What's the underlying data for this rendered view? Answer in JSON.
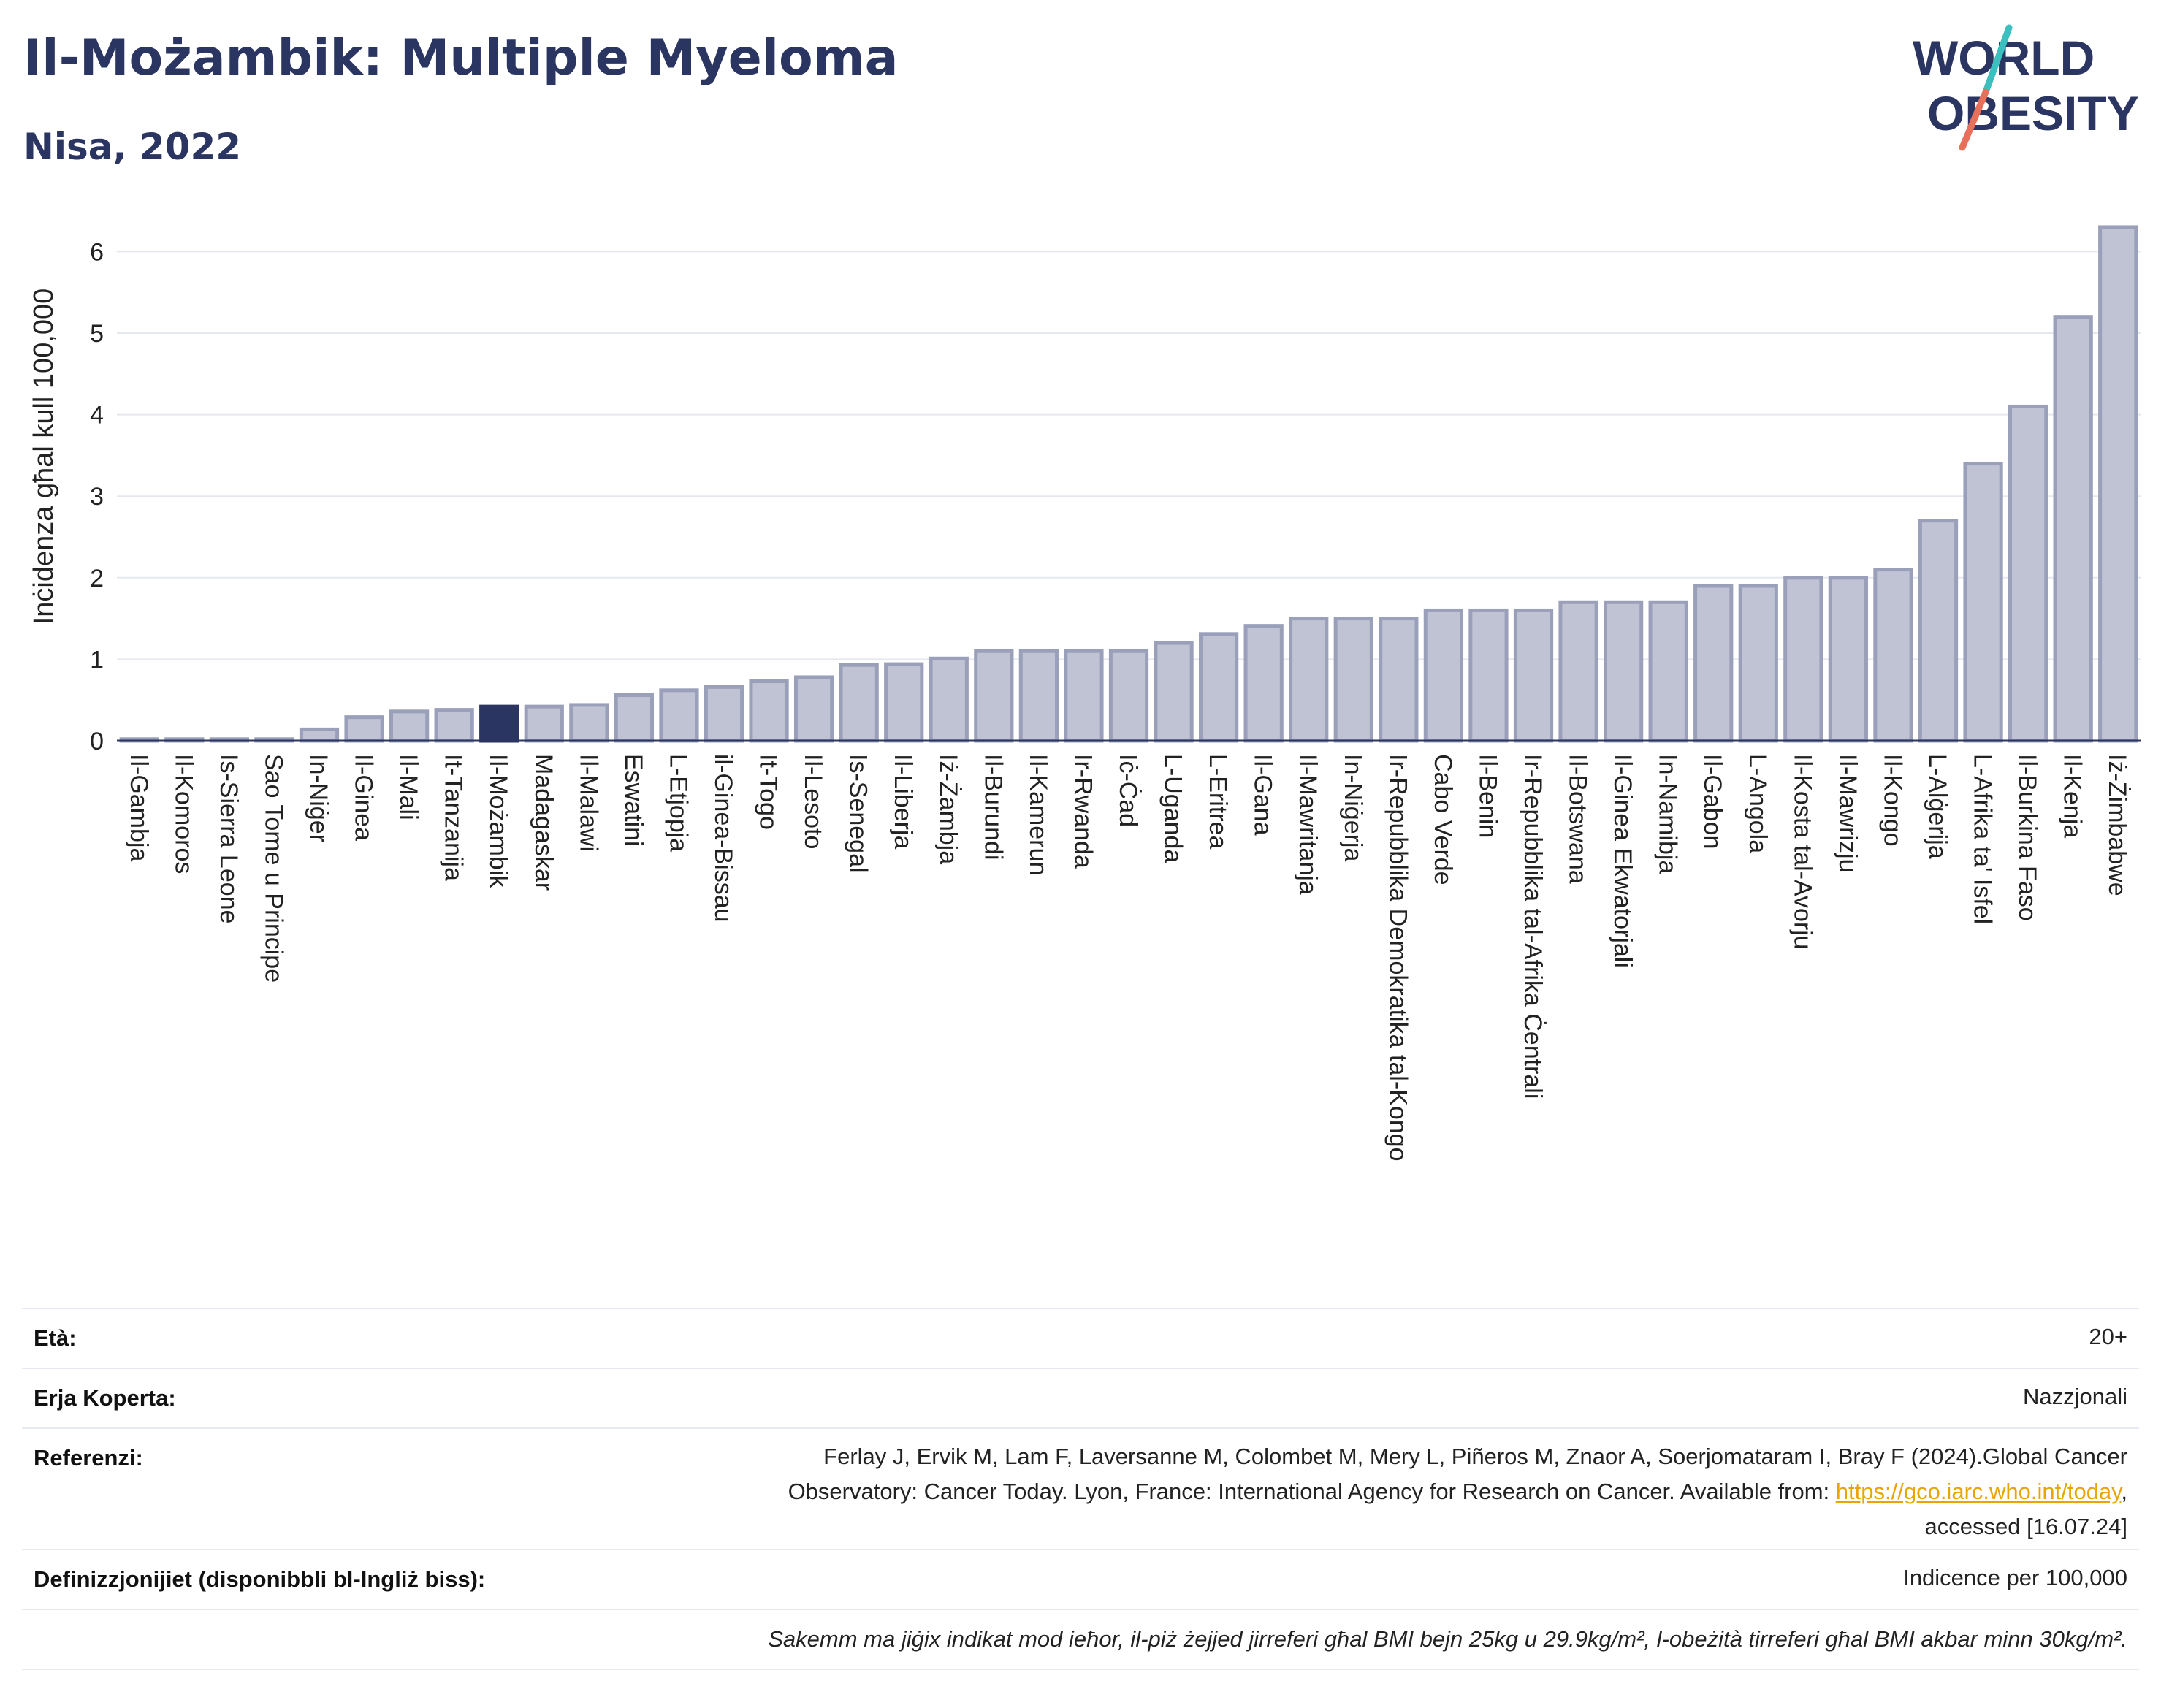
{
  "header": {
    "title": "Il-Możambik: Multiple Myeloma",
    "subtitle": "Nisa, 2022"
  },
  "logo": {
    "line1": "WORLD",
    "line2": "OBESITY",
    "colors": {
      "text": "#2b3561",
      "slash_top": "#3bbfbf",
      "slash_bottom": "#e8705a"
    }
  },
  "colors": {
    "bar_fill": "#bfc3d3",
    "bar_stroke": "#9aa0ba",
    "highlight_fill": "#2b3561",
    "grid": "#e6e8ef",
    "axis": "#2b3561",
    "title": "#2b3561"
  },
  "chart_data": {
    "type": "bar",
    "ylabel": "Inċidenza għal kull 100,000",
    "xlabel": "",
    "ylim": [
      0,
      6.5
    ],
    "yticks": [
      0,
      1,
      2,
      3,
      4,
      5,
      6
    ],
    "grid": true,
    "highlight": "Il-Możambik",
    "categories": [
      "Il-Gambja",
      "Il-Komoros",
      "Is-Sierra Leone",
      "Sao Tome u Principe",
      "In-Niġer",
      "Il-Ginea",
      "Il-Mali",
      "It-Tanzanija",
      "Il-Możambik",
      "Madagaskar",
      "Il-Malawi",
      "Eswatini",
      "L-Etjopja",
      "il-Ginea-Bissau",
      "It-Togo",
      "Il-Lesoto",
      "Is-Senegal",
      "Il-Liberja",
      "Iż-Żambja",
      "Il-Burundi",
      "Il-Kamerun",
      "Ir-Rwanda",
      "Iċ-Ċad",
      "L-Uganda",
      "L-Eritrea",
      "Il-Gana",
      "Il-Mawritanja",
      "In-Niġerja",
      "Ir-Repubblika Demokratika tal-Kongo",
      "Cabo Verde",
      "Il-Benin",
      "Ir-Repubblika tal-Afrika Ċentrali",
      "Il-Botswana",
      "Il-Ginea Ekwatorjali",
      "In-Namibja",
      "Il-Gabon",
      "L-Angola",
      "Il-Kosta tal-Avorju",
      "Il-Mawrizju",
      "Il-Kongo",
      "L-Alġerija",
      "L-Afrika ta' Isfel",
      "Il-Burkina Faso",
      "Il-Kenja",
      "Iż-Żimbabwe"
    ],
    "values": [
      0.02,
      0.02,
      0.02,
      0.02,
      0.14,
      0.29,
      0.36,
      0.38,
      0.42,
      0.42,
      0.44,
      0.56,
      0.62,
      0.66,
      0.73,
      0.78,
      0.93,
      0.94,
      1.01,
      1.1,
      1.1,
      1.1,
      1.1,
      1.2,
      1.31,
      1.41,
      1.5,
      1.5,
      1.5,
      1.6,
      1.6,
      1.6,
      1.7,
      1.7,
      1.7,
      1.9,
      1.9,
      2.0,
      2.0,
      2.1,
      2.7,
      3.4,
      4.1,
      5.2,
      6.3
    ]
  },
  "info": {
    "age_label": "Età:",
    "age_value": "20+",
    "coverage_label": "Erja Koperta:",
    "coverage_value": "Nazzjonali",
    "reference_label": "Referenzi:",
    "reference_line1": "Ferlay J, Ervik M, Lam F, Laversanne M, Colombet M, Mery L, Piñeros M, Znaor A, Soerjomataram I, Bray F (2024).Global Cancer",
    "reference_line2": "Observatory: Cancer Today. Lyon, France: International Agency for Research on Cancer. Available from: ",
    "reference_link": "https://gco.iarc.who.int/today",
    "reference_line2_end": ",",
    "reference_line3": "accessed [16.07.24]",
    "definitions_label": "Definizzjonijiet (disponibbli bl-Ingliż biss):",
    "definitions_value": "Indicence per 100,000",
    "note": "Sakemm ma jiġix indikat mod ieħor, il-piż żejjed jirreferi għal BMI bejn 25kg u 29.9kg/m², l-obeżità tirreferi għal BMI akbar minn 30kg/m²."
  }
}
